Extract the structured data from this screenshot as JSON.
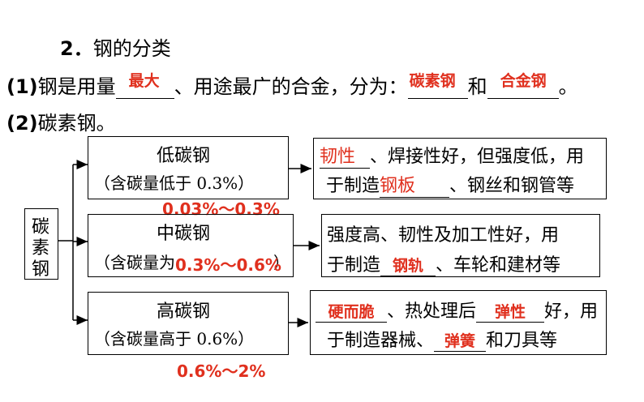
{
  "heading": {
    "number": "2．",
    "title": "钢的分类"
  },
  "line1": {
    "prefix": "(1)",
    "text_a": "钢是用量",
    "blank1": "最大",
    "text_b": "、用途最广的合金，分为：",
    "blank2": "碳素钢",
    "text_c": "和",
    "blank3": "合金钢",
    "text_d": "。"
  },
  "line2": {
    "prefix": "(2)",
    "text": "碳素钢。"
  },
  "root_box": {
    "chars": [
      "碳",
      "素",
      "钢"
    ]
  },
  "types": [
    {
      "name": "低碳钢",
      "range_text": "（含碳量低于 0.3%）",
      "answer": "0.03%～0.3%",
      "desc_line1": {
        "blank": "韧性",
        "text": "、焊接性好，但强度低，用"
      },
      "desc_line2": {
        "pre": "于制造",
        "blank": "钢板",
        "post": "、钢丝和钢管等"
      }
    },
    {
      "name": "中碳钢",
      "range_text": "（含碳量为",
      "answer": "0.3%～0.6%",
      "range_tail": "）",
      "desc_line1": {
        "text": "强度高、韧性及加工性好，用"
      },
      "desc_line2": {
        "pre": "于制造",
        "blank": "钢轨",
        "post": "、车轮和建材等"
      }
    },
    {
      "name": "高碳钢",
      "range_text": "（含碳量高于 0.6%）",
      "answer": "0.6%～2%",
      "desc_line1": {
        "blank1": "硬而脆",
        "mid": "、热处理后",
        "blank2": "弹性",
        "post": "好，用"
      },
      "desc_line2": {
        "pre": "于制造器械、",
        "blank": "弹簧",
        "post": "和刀具等"
      }
    }
  ],
  "colors": {
    "answer": "#e0301e",
    "line": "#000000"
  }
}
